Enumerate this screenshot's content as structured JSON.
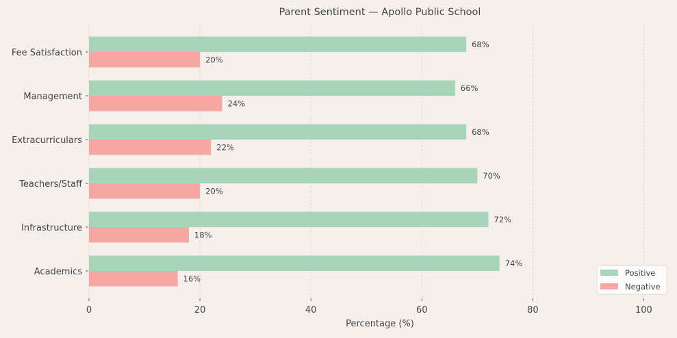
{
  "chart_data": {
    "type": "bar",
    "orientation": "horizontal",
    "title": "Parent Sentiment — Apollo Public School",
    "xlabel": "Percentage (%)",
    "ylabel": "",
    "xlim": [
      0,
      105.5
    ],
    "xticks": [
      0,
      20,
      40,
      60,
      80,
      100
    ],
    "grid": "x, dashed",
    "legend_position": "bottom-right",
    "categories": [
      "Academics",
      "Infrastructure",
      "Teachers/Staff",
      "Extracurriculars",
      "Management",
      "Fee Satisfaction"
    ],
    "series": [
      {
        "name": "Positive",
        "color": "#a8d5ba",
        "values": [
          74,
          72,
          70,
          68,
          66,
          68
        ]
      },
      {
        "name": "Negative",
        "color": "#f5a7a3",
        "values": [
          16,
          18,
          20,
          22,
          24,
          20
        ]
      }
    ],
    "value_label_suffix": "%"
  }
}
